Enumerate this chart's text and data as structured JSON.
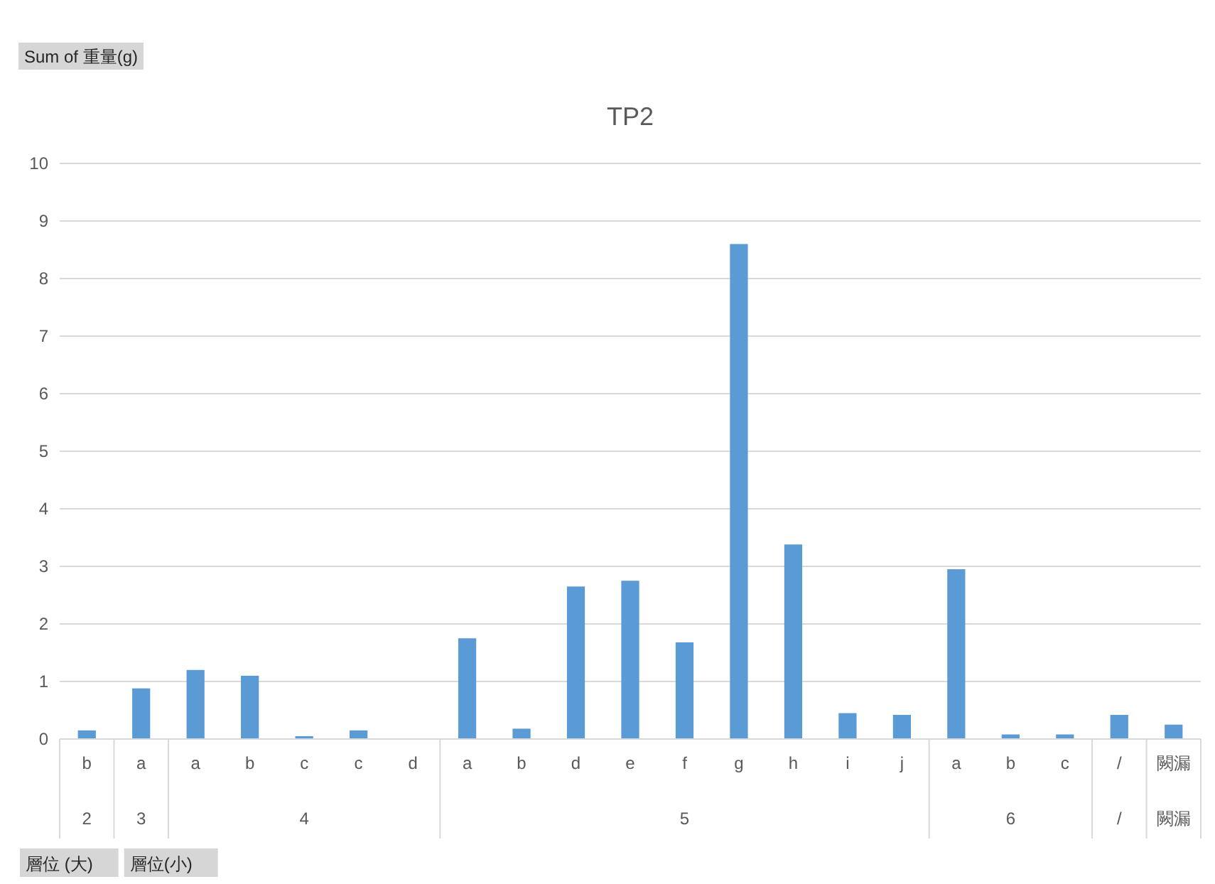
{
  "chart_data": {
    "type": "bar",
    "title": "TP2",
    "categories": [
      "b",
      "a",
      "a",
      "b",
      "c",
      "c",
      "d",
      "a",
      "b",
      "d",
      "e",
      "f",
      "g",
      "h",
      "i",
      "j",
      "a",
      "b",
      "c",
      "/",
      "闕漏"
    ],
    "values": [
      0.15,
      0.88,
      1.2,
      1.1,
      0.05,
      0.15,
      0,
      1.75,
      0.18,
      2.65,
      2.75,
      1.68,
      8.6,
      3.38,
      0.45,
      0.42,
      2.95,
      0.08,
      0.08,
      0.42,
      0.25
    ],
    "color": "#5b9bd5",
    "ylim": [
      0,
      10
    ],
    "yticks": [
      0,
      1,
      2,
      3,
      4,
      5,
      6,
      7,
      8,
      9,
      10
    ],
    "grid": "y",
    "legend": false,
    "annotations": [
      "Sum of 重量(g)",
      "層位 (大)",
      "層位(小)",
      "2",
      "3",
      "4",
      "5",
      "6",
      "/",
      "闕漏"
    ]
  }
}
